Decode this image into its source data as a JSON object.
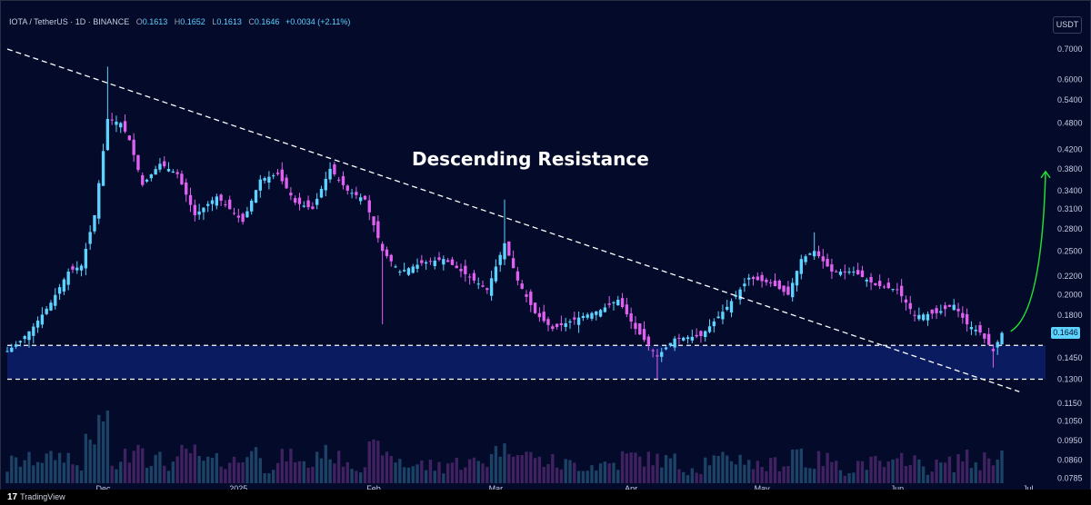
{
  "header": {
    "symbol": "IOTA / TetherUS · 1D · BINANCE",
    "open_label": "O",
    "open": "0.1613",
    "high_label": "H",
    "high": "0.1652",
    "low_label": "L",
    "low": "0.1613",
    "close_label": "C",
    "close": "0.1646",
    "change": "+0.0034 (+2.11%)"
  },
  "currency_button": "USDT",
  "footer": {
    "brand": "TradingView",
    "logo_mark": "17"
  },
  "colors": {
    "background": "#030a2a",
    "bull": "#5fd3ff",
    "bear": "#e060f0",
    "support_zone": "#0d1f6a",
    "arrow": "#22dd33",
    "price_tag": "#5fd3ff"
  },
  "chart_data": {
    "type": "candlestick",
    "title": "",
    "annotation": "Descending Resistance",
    "y_scale": "log",
    "ylim": [
      0.0765,
      0.74
    ],
    "y_ticks": [
      "0.7000",
      "0.6000",
      "0.5400",
      "0.4800",
      "0.4200",
      "0.3800",
      "0.3400",
      "0.3100",
      "0.2800",
      "0.2500",
      "0.2200",
      "0.2000",
      "0.1800",
      "0.1646",
      "0.1450",
      "0.1300",
      "0.1150",
      "0.1050",
      "0.0950",
      "0.0860",
      "0.0785"
    ],
    "last_price": "0.1646",
    "x_range": [
      "2024-11-09",
      "2025-07-05"
    ],
    "x_ticks": [
      {
        "label": "Dec",
        "date": "2024-12-01"
      },
      {
        "label": "2025",
        "date": "2025-01-01"
      },
      {
        "label": "Feb",
        "date": "2025-02-01"
      },
      {
        "label": "Mar",
        "date": "2025-03-01"
      },
      {
        "label": "Apr",
        "date": "2025-04-01"
      },
      {
        "label": "May",
        "date": "2025-05-01"
      },
      {
        "label": "Jun",
        "date": "2025-06-01"
      },
      {
        "label": "Jul",
        "date": "2025-07-01"
      }
    ],
    "price_path": [
      {
        "date": "2024-11-09",
        "close": 0.15
      },
      {
        "date": "2024-11-12",
        "close": 0.158
      },
      {
        "date": "2024-11-15",
        "close": 0.17
      },
      {
        "date": "2024-11-19",
        "close": 0.192
      },
      {
        "date": "2024-11-23",
        "close": 0.225
      },
      {
        "date": "2024-11-26",
        "close": 0.232
      },
      {
        "date": "2024-11-29",
        "close": 0.3
      },
      {
        "date": "2024-12-02",
        "close": 0.49
      },
      {
        "date": "2024-12-05",
        "close": 0.48
      },
      {
        "date": "2024-12-07",
        "close": 0.44
      },
      {
        "date": "2024-12-10",
        "close": 0.35
      },
      {
        "date": "2024-12-14",
        "close": 0.39
      },
      {
        "date": "2024-12-18",
        "close": 0.37
      },
      {
        "date": "2024-12-22",
        "close": 0.3
      },
      {
        "date": "2024-12-27",
        "close": 0.33
      },
      {
        "date": "2025-01-02",
        "close": 0.29
      },
      {
        "date": "2025-01-06",
        "close": 0.36
      },
      {
        "date": "2025-01-10",
        "close": 0.37
      },
      {
        "date": "2025-01-14",
        "close": 0.32
      },
      {
        "date": "2025-01-18",
        "close": 0.31
      },
      {
        "date": "2025-01-22",
        "close": 0.38
      },
      {
        "date": "2025-01-26",
        "close": 0.34
      },
      {
        "date": "2025-01-30",
        "close": 0.325
      },
      {
        "date": "2025-02-03",
        "close": 0.25
      },
      {
        "date": "2025-02-07",
        "close": 0.225
      },
      {
        "date": "2025-02-12",
        "close": 0.235
      },
      {
        "date": "2025-02-17",
        "close": 0.24
      },
      {
        "date": "2025-02-22",
        "close": 0.222
      },
      {
        "date": "2025-02-27",
        "close": 0.205
      },
      {
        "date": "2025-03-03",
        "close": 0.26
      },
      {
        "date": "2025-03-06",
        "close": 0.215
      },
      {
        "date": "2025-03-10",
        "close": 0.182
      },
      {
        "date": "2025-03-14",
        "close": 0.168
      },
      {
        "date": "2025-03-20",
        "close": 0.178
      },
      {
        "date": "2025-03-25",
        "close": 0.185
      },
      {
        "date": "2025-03-29",
        "close": 0.195
      },
      {
        "date": "2025-04-02",
        "close": 0.168
      },
      {
        "date": "2025-04-07",
        "close": 0.146
      },
      {
        "date": "2025-04-11",
        "close": 0.16
      },
      {
        "date": "2025-04-17",
        "close": 0.162
      },
      {
        "date": "2025-04-23",
        "close": 0.188
      },
      {
        "date": "2025-04-28",
        "close": 0.218
      },
      {
        "date": "2025-05-03",
        "close": 0.212
      },
      {
        "date": "2025-05-07",
        "close": 0.2
      },
      {
        "date": "2025-05-10",
        "close": 0.24
      },
      {
        "date": "2025-05-13",
        "close": 0.25
      },
      {
        "date": "2025-05-17",
        "close": 0.225
      },
      {
        "date": "2025-05-22",
        "close": 0.225
      },
      {
        "date": "2025-05-27",
        "close": 0.21
      },
      {
        "date": "2025-06-01",
        "close": 0.205
      },
      {
        "date": "2025-06-05",
        "close": 0.18
      },
      {
        "date": "2025-06-10",
        "close": 0.182
      },
      {
        "date": "2025-06-14",
        "close": 0.19
      },
      {
        "date": "2025-06-17",
        "close": 0.172
      },
      {
        "date": "2025-06-20",
        "close": 0.165
      },
      {
        "date": "2025-06-23",
        "close": 0.15
      },
      {
        "date": "2025-06-25",
        "close": 0.1646
      }
    ],
    "support_zone": [
      0.13,
      0.1545
    ],
    "resistance_line": [
      {
        "date": "2024-11-09",
        "price": 0.7
      },
      {
        "date": "2025-06-29",
        "price": 0.122
      }
    ],
    "projection_arrow": {
      "from": {
        "date": "2025-06-27",
        "price": 0.166
      },
      "to": {
        "date": "2025-07-05",
        "price": 0.375
      }
    },
    "legend": "none",
    "grid": false
  }
}
